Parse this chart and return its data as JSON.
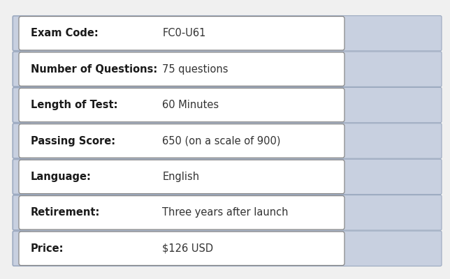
{
  "rows": [
    {
      "label": "Exam Code:",
      "value": "FC0-U61"
    },
    {
      "label": "Number of Questions:",
      "value": "75 questions"
    },
    {
      "label": "Length of Test:",
      "value": "60 Minutes"
    },
    {
      "label": "Passing Score:",
      "value": "650 (on a scale of 900)"
    },
    {
      "label": "Language:",
      "value": "English"
    },
    {
      "label": "Retirement:",
      "value": "Three years after launch"
    },
    {
      "label": "Price:",
      "value": "$126 USD"
    }
  ],
  "bg_color": "#f0f0f0",
  "banner_color": "#c8d0e0",
  "banner_edge_color": "#9aa8bf",
  "white_box_color": "#ffffff",
  "white_box_edge_color": "#888888",
  "tab_color": "#c8d0e0",
  "tab_edge_color": "#9aa8bf",
  "label_color": "#1a1a1a",
  "value_color": "#333333",
  "label_fontsize": 10.5,
  "value_fontsize": 10.5,
  "fig_width": 6.44,
  "fig_height": 4.0,
  "dpi": 100
}
